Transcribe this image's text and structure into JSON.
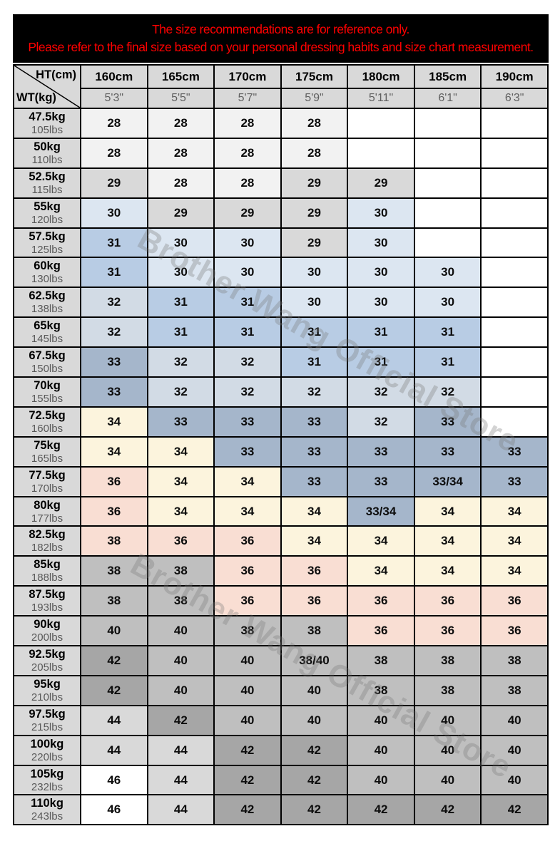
{
  "banner": {
    "line1": "The size recommendations are for reference only.",
    "line2": "Please refer to the final size based on your personal dressing habits and size chart measurement."
  },
  "watermark": {
    "text": "Brother Wang Official Store"
  },
  "colors": {
    "white": "#FFFFFF",
    "gray-lightest": "#F2F2F2",
    "gray-light": "#D9D9D9",
    "gray-mid": "#BFBFBF",
    "gray-dark": "#A6A6A6",
    "blue-light": "#DCE6F1",
    "blue": "#B8CCE4",
    "steel-light": "#D2DBE5",
    "steel": "#A5B6CB",
    "cream": "#FCF4DD",
    "peach": "#F9DED3"
  },
  "table": {
    "corner": {
      "ht": "HT(cm)",
      "wt": "WT(kg)"
    },
    "columns_cm": [
      "160cm",
      "165cm",
      "170cm",
      "175cm",
      "180cm",
      "185cm",
      "190cm"
    ],
    "columns_ft": [
      "5'3\"",
      "5'5\"",
      "5'7\"",
      "5'9\"",
      "5'11\"",
      "6'1\"",
      "6'3\""
    ],
    "rows": [
      {
        "kg": "47.5kg",
        "lbs": "105lbs",
        "cells": [
          {
            "v": "28",
            "bg": "gray-lightest"
          },
          {
            "v": "28",
            "bg": "gray-lightest"
          },
          {
            "v": "28",
            "bg": "gray-lightest"
          },
          {
            "v": "28",
            "bg": "gray-lightest"
          },
          {
            "v": "",
            "bg": "white"
          },
          {
            "v": "",
            "bg": "white"
          },
          {
            "v": "",
            "bg": "white"
          }
        ]
      },
      {
        "kg": "50kg",
        "lbs": "110lbs",
        "cells": [
          {
            "v": "28",
            "bg": "gray-lightest"
          },
          {
            "v": "28",
            "bg": "gray-lightest"
          },
          {
            "v": "28",
            "bg": "gray-lightest"
          },
          {
            "v": "28",
            "bg": "gray-lightest"
          },
          {
            "v": "",
            "bg": "white"
          },
          {
            "v": "",
            "bg": "white"
          },
          {
            "v": "",
            "bg": "white"
          }
        ]
      },
      {
        "kg": "52.5kg",
        "lbs": "115lbs",
        "cells": [
          {
            "v": "29",
            "bg": "gray-light"
          },
          {
            "v": "28",
            "bg": "gray-lightest"
          },
          {
            "v": "28",
            "bg": "gray-lightest"
          },
          {
            "v": "29",
            "bg": "gray-light"
          },
          {
            "v": "29",
            "bg": "gray-light"
          },
          {
            "v": "",
            "bg": "white"
          },
          {
            "v": "",
            "bg": "white"
          }
        ]
      },
      {
        "kg": "55kg",
        "lbs": "120lbs",
        "cells": [
          {
            "v": "30",
            "bg": "blue-light"
          },
          {
            "v": "29",
            "bg": "gray-light"
          },
          {
            "v": "29",
            "bg": "gray-light"
          },
          {
            "v": "29",
            "bg": "gray-light"
          },
          {
            "v": "30",
            "bg": "blue-light"
          },
          {
            "v": "",
            "bg": "white"
          },
          {
            "v": "",
            "bg": "white"
          }
        ]
      },
      {
        "kg": "57.5kg",
        "lbs": "125lbs",
        "cells": [
          {
            "v": "31",
            "bg": "blue"
          },
          {
            "v": "30",
            "bg": "blue-light"
          },
          {
            "v": "30",
            "bg": "blue-light"
          },
          {
            "v": "29",
            "bg": "gray-light"
          },
          {
            "v": "30",
            "bg": "blue-light"
          },
          {
            "v": "",
            "bg": "white"
          },
          {
            "v": "",
            "bg": "white"
          }
        ]
      },
      {
        "kg": "60kg",
        "lbs": "130lbs",
        "cells": [
          {
            "v": "31",
            "bg": "blue"
          },
          {
            "v": "30",
            "bg": "blue-light"
          },
          {
            "v": "30",
            "bg": "blue-light"
          },
          {
            "v": "30",
            "bg": "blue-light"
          },
          {
            "v": "30",
            "bg": "blue-light"
          },
          {
            "v": "30",
            "bg": "blue-light"
          },
          {
            "v": "",
            "bg": "white"
          }
        ]
      },
      {
        "kg": "62.5kg",
        "lbs": "138lbs",
        "cells": [
          {
            "v": "32",
            "bg": "steel-light"
          },
          {
            "v": "31",
            "bg": "blue"
          },
          {
            "v": "31",
            "bg": "blue"
          },
          {
            "v": "30",
            "bg": "blue-light"
          },
          {
            "v": "30",
            "bg": "blue-light"
          },
          {
            "v": "30",
            "bg": "blue-light"
          },
          {
            "v": "",
            "bg": "white"
          }
        ]
      },
      {
        "kg": "65kg",
        "lbs": "145lbs",
        "cells": [
          {
            "v": "32",
            "bg": "steel-light"
          },
          {
            "v": "31",
            "bg": "blue"
          },
          {
            "v": "31",
            "bg": "blue"
          },
          {
            "v": "31",
            "bg": "blue"
          },
          {
            "v": "31",
            "bg": "blue"
          },
          {
            "v": "31",
            "bg": "blue"
          },
          {
            "v": "",
            "bg": "white"
          }
        ]
      },
      {
        "kg": "67.5kg",
        "lbs": "150lbs",
        "cells": [
          {
            "v": "33",
            "bg": "steel"
          },
          {
            "v": "32",
            "bg": "steel-light"
          },
          {
            "v": "32",
            "bg": "steel-light"
          },
          {
            "v": "31",
            "bg": "blue"
          },
          {
            "v": "31",
            "bg": "blue"
          },
          {
            "v": "31",
            "bg": "blue"
          },
          {
            "v": "",
            "bg": "white"
          }
        ]
      },
      {
        "kg": "70kg",
        "lbs": "155lbs",
        "cells": [
          {
            "v": "33",
            "bg": "steel"
          },
          {
            "v": "32",
            "bg": "steel-light"
          },
          {
            "v": "32",
            "bg": "steel-light"
          },
          {
            "v": "32",
            "bg": "steel-light"
          },
          {
            "v": "32",
            "bg": "steel-light"
          },
          {
            "v": "32",
            "bg": "steel-light"
          },
          {
            "v": "",
            "bg": "white"
          }
        ]
      },
      {
        "kg": "72.5kg",
        "lbs": "160lbs",
        "cells": [
          {
            "v": "34",
            "bg": "cream"
          },
          {
            "v": "33",
            "bg": "steel"
          },
          {
            "v": "33",
            "bg": "steel"
          },
          {
            "v": "33",
            "bg": "steel"
          },
          {
            "v": "32",
            "bg": "steel-light"
          },
          {
            "v": "33",
            "bg": "steel"
          },
          {
            "v": "",
            "bg": "white"
          }
        ]
      },
      {
        "kg": "75kg",
        "lbs": "165lbs",
        "cells": [
          {
            "v": "34",
            "bg": "cream"
          },
          {
            "v": "34",
            "bg": "cream"
          },
          {
            "v": "33",
            "bg": "steel"
          },
          {
            "v": "33",
            "bg": "steel"
          },
          {
            "v": "33",
            "bg": "steel"
          },
          {
            "v": "33",
            "bg": "steel"
          },
          {
            "v": "33",
            "bg": "steel"
          }
        ]
      },
      {
        "kg": "77.5kg",
        "lbs": "170lbs",
        "cells": [
          {
            "v": "36",
            "bg": "peach"
          },
          {
            "v": "34",
            "bg": "cream"
          },
          {
            "v": "34",
            "bg": "cream"
          },
          {
            "v": "33",
            "bg": "steel"
          },
          {
            "v": "33",
            "bg": "steel"
          },
          {
            "v": "33/34",
            "bg": "steel"
          },
          {
            "v": "33",
            "bg": "steel"
          }
        ]
      },
      {
        "kg": "80kg",
        "lbs": "177lbs",
        "cells": [
          {
            "v": "36",
            "bg": "peach"
          },
          {
            "v": "34",
            "bg": "cream"
          },
          {
            "v": "34",
            "bg": "cream"
          },
          {
            "v": "34",
            "bg": "cream"
          },
          {
            "v": "33/34",
            "bg": "steel"
          },
          {
            "v": "34",
            "bg": "cream"
          },
          {
            "v": "34",
            "bg": "cream"
          }
        ]
      },
      {
        "kg": "82.5kg",
        "lbs": "182lbs",
        "cells": [
          {
            "v": "38",
            "bg": "peach"
          },
          {
            "v": "36",
            "bg": "peach"
          },
          {
            "v": "36",
            "bg": "peach"
          },
          {
            "v": "34",
            "bg": "cream"
          },
          {
            "v": "34",
            "bg": "cream"
          },
          {
            "v": "34",
            "bg": "cream"
          },
          {
            "v": "34",
            "bg": "cream"
          }
        ]
      },
      {
        "kg": "85kg",
        "lbs": "188lbs",
        "cells": [
          {
            "v": "38",
            "bg": "gray-mid"
          },
          {
            "v": "38",
            "bg": "gray-mid"
          },
          {
            "v": "36",
            "bg": "peach"
          },
          {
            "v": "36",
            "bg": "peach"
          },
          {
            "v": "34",
            "bg": "cream"
          },
          {
            "v": "34",
            "bg": "cream"
          },
          {
            "v": "34",
            "bg": "cream"
          }
        ]
      },
      {
        "kg": "87.5kg",
        "lbs": "193lbs",
        "cells": [
          {
            "v": "38",
            "bg": "gray-mid"
          },
          {
            "v": "38",
            "bg": "gray-mid"
          },
          {
            "v": "36",
            "bg": "peach"
          },
          {
            "v": "36",
            "bg": "peach"
          },
          {
            "v": "36",
            "bg": "peach"
          },
          {
            "v": "36",
            "bg": "peach"
          },
          {
            "v": "36",
            "bg": "peach"
          }
        ]
      },
      {
        "kg": "90kg",
        "lbs": "200lbs",
        "cells": [
          {
            "v": "40",
            "bg": "gray-mid"
          },
          {
            "v": "40",
            "bg": "gray-mid"
          },
          {
            "v": "38",
            "bg": "gray-mid"
          },
          {
            "v": "38",
            "bg": "gray-mid"
          },
          {
            "v": "36",
            "bg": "peach"
          },
          {
            "v": "36",
            "bg": "peach"
          },
          {
            "v": "36",
            "bg": "peach"
          }
        ]
      },
      {
        "kg": "92.5kg",
        "lbs": "205lbs",
        "cells": [
          {
            "v": "42",
            "bg": "gray-dark"
          },
          {
            "v": "40",
            "bg": "gray-mid"
          },
          {
            "v": "40",
            "bg": "gray-mid"
          },
          {
            "v": "38/40",
            "bg": "gray-mid"
          },
          {
            "v": "38",
            "bg": "gray-mid"
          },
          {
            "v": "38",
            "bg": "gray-mid"
          },
          {
            "v": "38",
            "bg": "gray-mid"
          }
        ]
      },
      {
        "kg": "95kg",
        "lbs": "210lbs",
        "cells": [
          {
            "v": "42",
            "bg": "gray-dark"
          },
          {
            "v": "40",
            "bg": "gray-mid"
          },
          {
            "v": "40",
            "bg": "gray-mid"
          },
          {
            "v": "40",
            "bg": "gray-mid"
          },
          {
            "v": "38",
            "bg": "gray-mid"
          },
          {
            "v": "38",
            "bg": "gray-mid"
          },
          {
            "v": "38",
            "bg": "gray-mid"
          }
        ]
      },
      {
        "kg": "97.5kg",
        "lbs": "215lbs",
        "cells": [
          {
            "v": "44",
            "bg": "gray-light"
          },
          {
            "v": "42",
            "bg": "gray-dark"
          },
          {
            "v": "40",
            "bg": "gray-mid"
          },
          {
            "v": "40",
            "bg": "gray-mid"
          },
          {
            "v": "40",
            "bg": "gray-mid"
          },
          {
            "v": "40",
            "bg": "gray-mid"
          },
          {
            "v": "40",
            "bg": "gray-mid"
          }
        ]
      },
      {
        "kg": "100kg",
        "lbs": "220lbs",
        "cells": [
          {
            "v": "44",
            "bg": "gray-light"
          },
          {
            "v": "44",
            "bg": "gray-light"
          },
          {
            "v": "42",
            "bg": "gray-dark"
          },
          {
            "v": "42",
            "bg": "gray-dark"
          },
          {
            "v": "40",
            "bg": "gray-mid"
          },
          {
            "v": "40",
            "bg": "gray-mid"
          },
          {
            "v": "40",
            "bg": "gray-mid"
          }
        ]
      },
      {
        "kg": "105kg",
        "lbs": "232lbs",
        "cells": [
          {
            "v": "46",
            "bg": "white"
          },
          {
            "v": "44",
            "bg": "gray-light"
          },
          {
            "v": "42",
            "bg": "gray-dark"
          },
          {
            "v": "42",
            "bg": "gray-dark"
          },
          {
            "v": "40",
            "bg": "gray-mid"
          },
          {
            "v": "40",
            "bg": "gray-mid"
          },
          {
            "v": "40",
            "bg": "gray-mid"
          }
        ]
      },
      {
        "kg": "110kg",
        "lbs": "243lbs",
        "cells": [
          {
            "v": "46",
            "bg": "white"
          },
          {
            "v": "44",
            "bg": "gray-light"
          },
          {
            "v": "42",
            "bg": "gray-dark"
          },
          {
            "v": "42",
            "bg": "gray-dark"
          },
          {
            "v": "42",
            "bg": "gray-dark"
          },
          {
            "v": "42",
            "bg": "gray-dark"
          },
          {
            "v": "42",
            "bg": "gray-dark"
          }
        ]
      }
    ]
  }
}
